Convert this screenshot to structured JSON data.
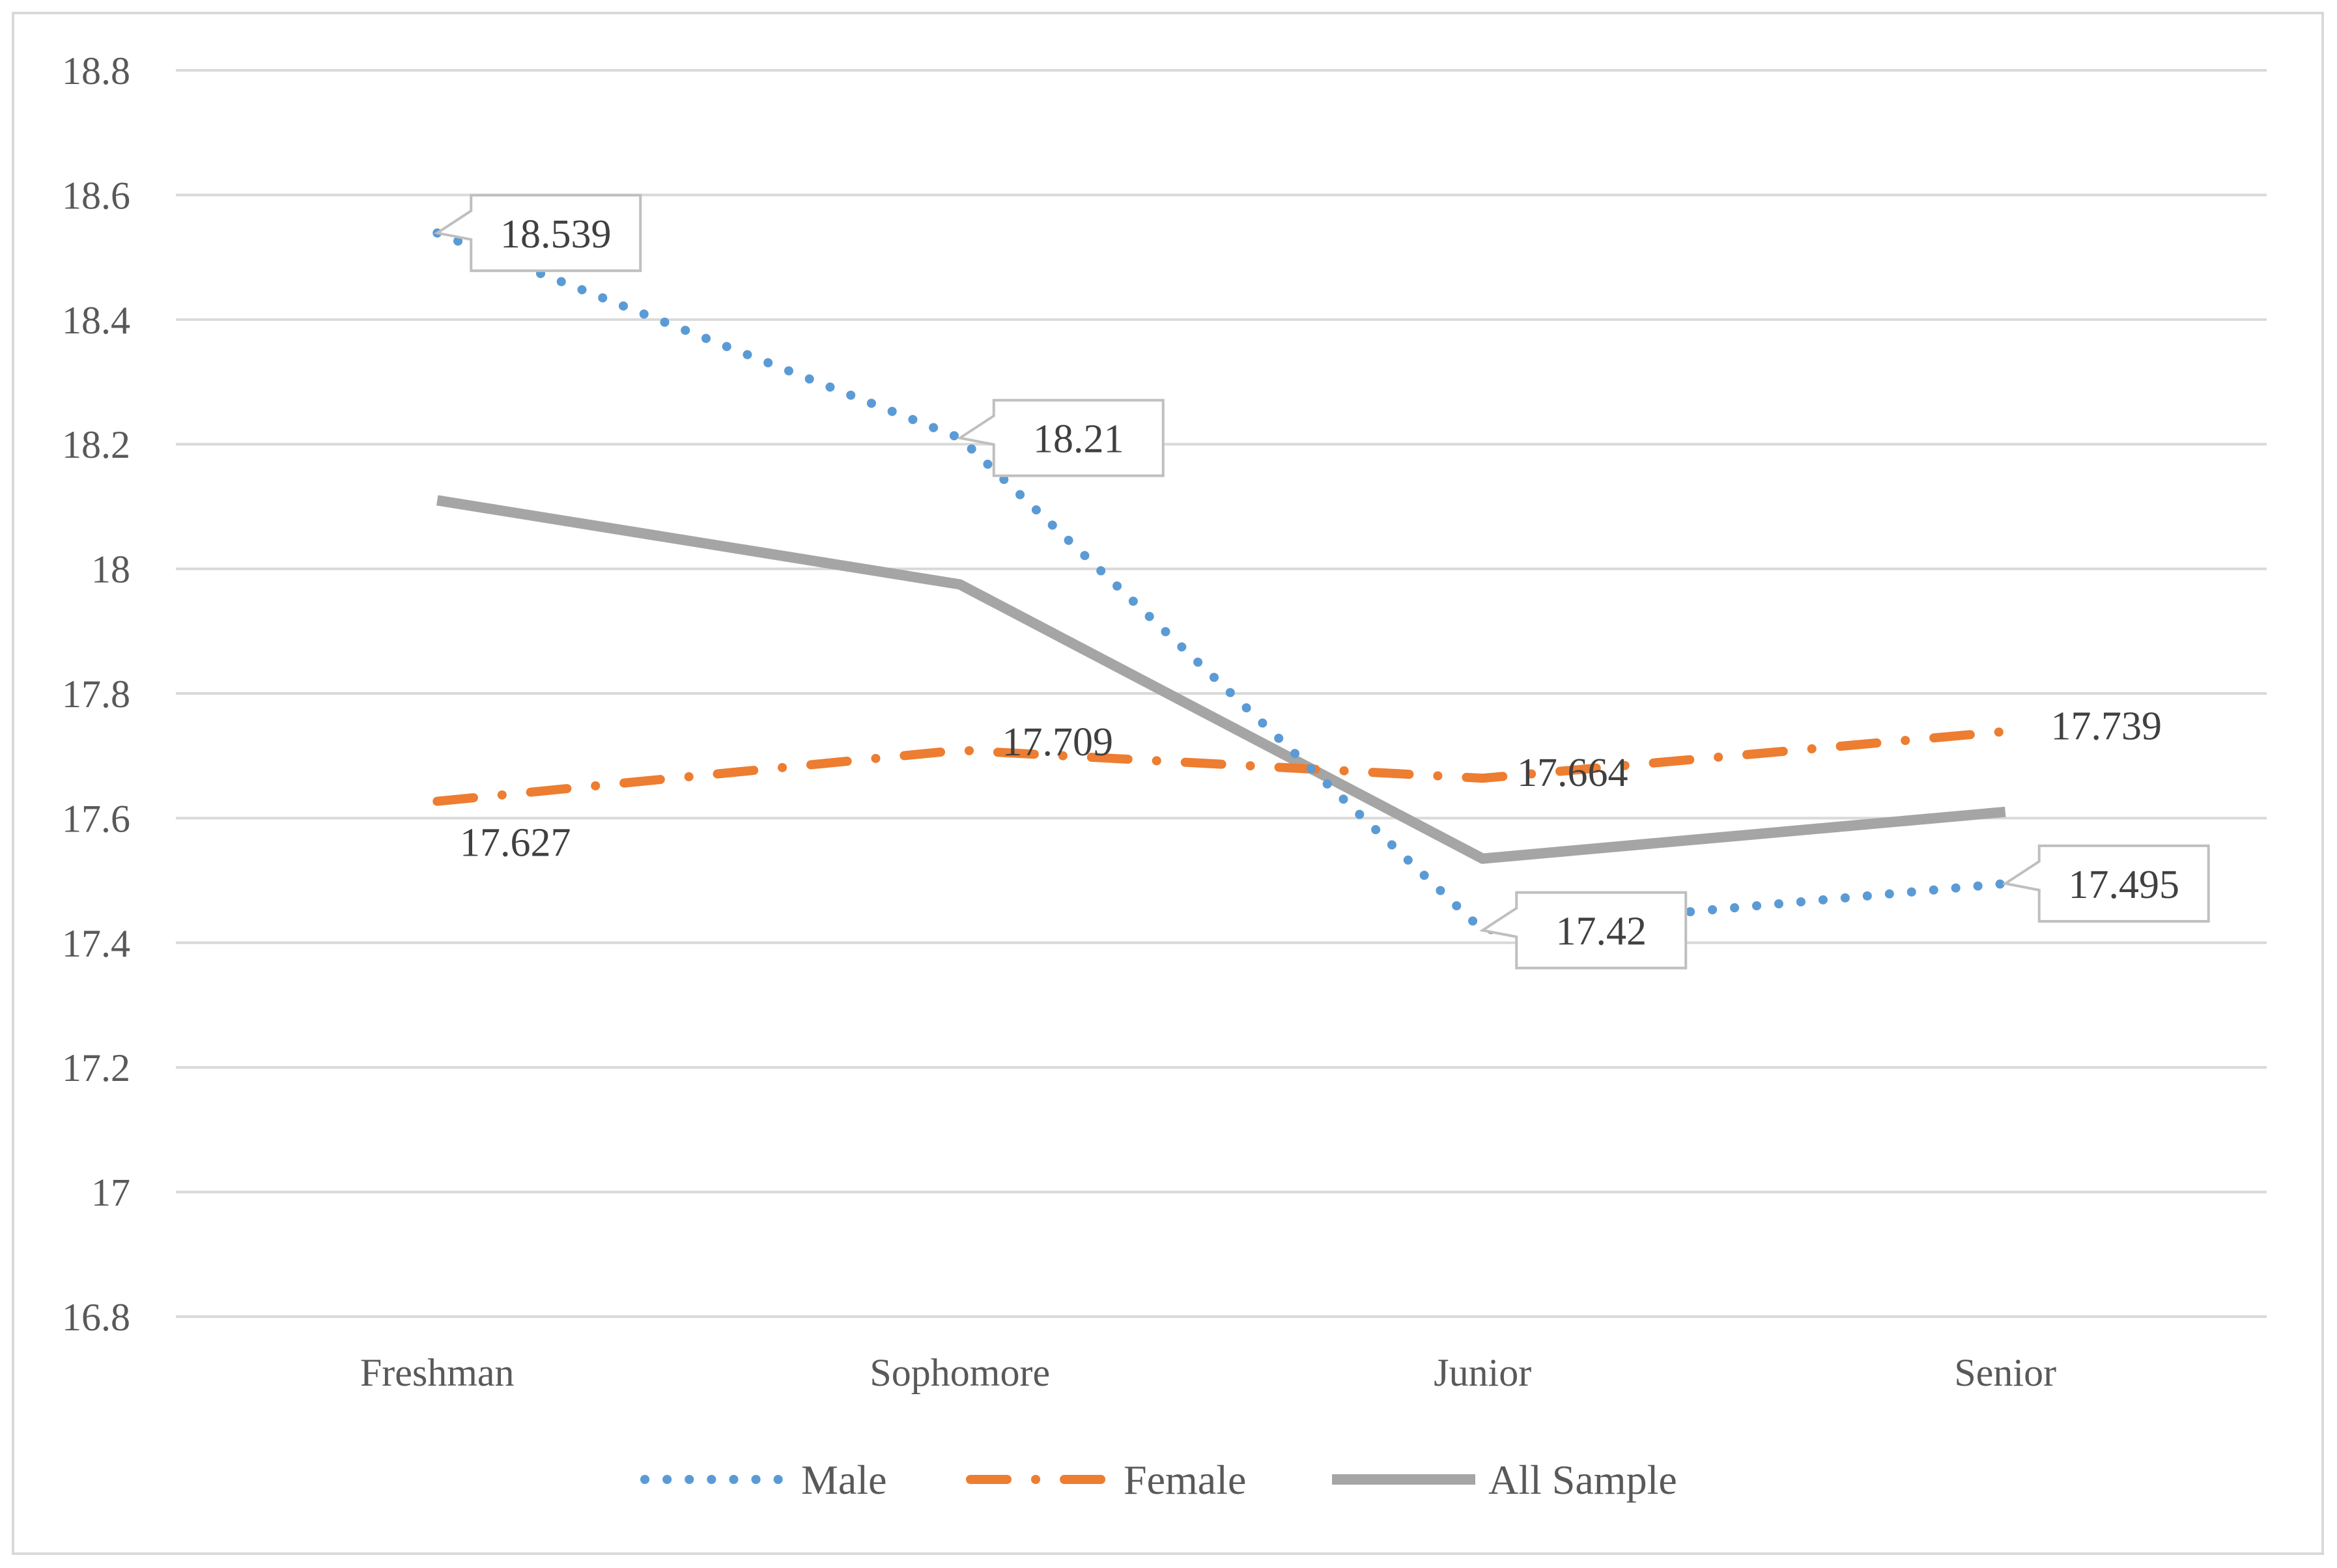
{
  "chart_data": {
    "type": "line",
    "title": "",
    "xlabel": "",
    "ylabel": "",
    "categories": [
      "Freshman",
      "Sophomore",
      "Junior",
      "Senior"
    ],
    "ylim": [
      16.8,
      18.8
    ],
    "yticks": [
      16.8,
      17,
      17.2,
      17.4,
      17.6,
      17.8,
      18,
      18.2,
      18.4,
      18.6,
      18.8
    ],
    "ytick_labels": [
      "16.8",
      "17",
      "17.2",
      "17.4",
      "17.6",
      "17.8",
      "18",
      "18.2",
      "18.4",
      "18.6",
      "18.8"
    ],
    "grid": true,
    "legend_position": "bottom",
    "series": [
      {
        "name": "Male",
        "values": [
          18.539,
          18.21,
          17.42,
          17.495
        ],
        "labels": [
          "18.539",
          "18.21",
          "17.42",
          "17.495"
        ],
        "color": "#5b9bd5",
        "style": "dotted",
        "callout": true
      },
      {
        "name": "Female",
        "values": [
          17.627,
          17.709,
          17.664,
          17.739
        ],
        "labels": [
          "17.627",
          "17.709",
          "17.664",
          "17.739"
        ],
        "color": "#ed7d31",
        "style": "dash-dot",
        "callout": false
      },
      {
        "name": "All Sample",
        "values": [
          18.11,
          17.975,
          17.535,
          17.61
        ],
        "color": "#a5a5a5",
        "style": "solid",
        "callout": false
      }
    ]
  },
  "colors": {
    "grid": "#d9d9d9",
    "frame": "#d9d9d9",
    "callout_border": "#bfbfbf"
  }
}
